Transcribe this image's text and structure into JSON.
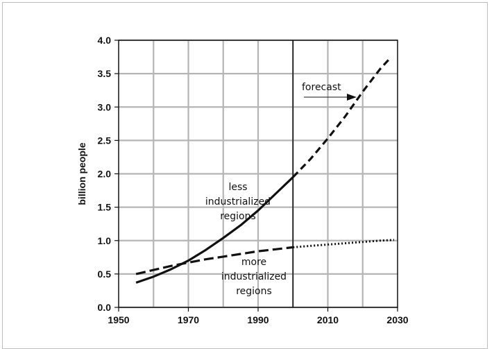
{
  "chart_data": {
    "type": "line",
    "title": "",
    "xlabel": "",
    "ylabel": "billion people",
    "xlim": [
      1950,
      2030
    ],
    "ylim": [
      0.0,
      4.0
    ],
    "x_ticks": [
      "1950",
      "1970",
      "1990",
      "2010",
      "2030"
    ],
    "y_ticks": [
      "0.0",
      "0.5",
      "1.0",
      "1.5",
      "2.0",
      "2.5",
      "3.0",
      "3.5",
      "4.0"
    ],
    "grid": true,
    "forecast_start": 2000,
    "series": [
      {
        "id": "less",
        "label_lines": [
          "less",
          "industrialized",
          "regions"
        ],
        "historical": {
          "x": [
            1955,
            1960,
            1965,
            1970,
            1975,
            1980,
            1985,
            1990,
            1995,
            2000
          ],
          "y": [
            0.37,
            0.46,
            0.57,
            0.7,
            0.86,
            1.04,
            1.23,
            1.45,
            1.7,
            1.95
          ]
        },
        "forecast": {
          "x": [
            2000,
            2005,
            2010,
            2015,
            2020,
            2025,
            2028
          ],
          "y": [
            1.95,
            2.22,
            2.53,
            2.86,
            3.23,
            3.57,
            3.74
          ]
        }
      },
      {
        "id": "more",
        "label_lines": [
          "more",
          "industrialized",
          "regions"
        ],
        "historical": {
          "x": [
            1955,
            1960,
            1965,
            1970,
            1975,
            1980,
            1985,
            1990,
            1995,
            2000
          ],
          "y": [
            0.5,
            0.56,
            0.62,
            0.67,
            0.72,
            0.76,
            0.8,
            0.84,
            0.87,
            0.9
          ]
        },
        "forecast": {
          "x": [
            2000,
            2005,
            2010,
            2015,
            2020,
            2025,
            2029
          ],
          "y": [
            0.9,
            0.92,
            0.94,
            0.96,
            0.98,
            1.0,
            1.01
          ]
        }
      }
    ],
    "annotations": {
      "forecast_label": "forecast"
    }
  }
}
